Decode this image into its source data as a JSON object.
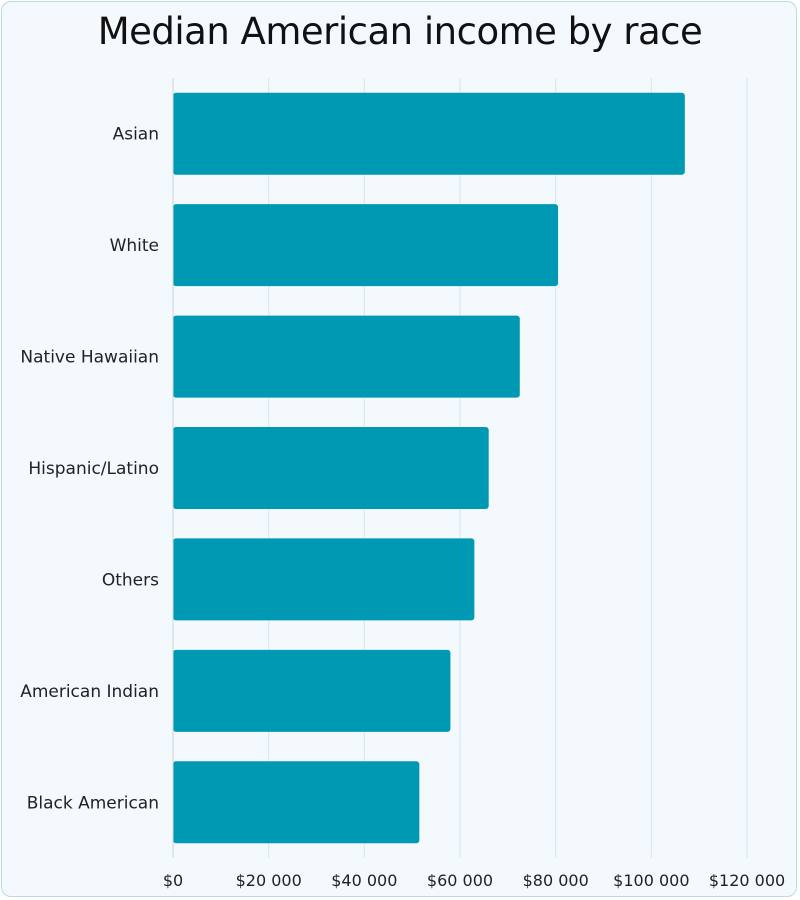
{
  "chart_data": {
    "type": "bar",
    "orientation": "horizontal",
    "title": "Median American income by race",
    "xlabel": "",
    "ylabel": "",
    "categories": [
      "Asian",
      "White",
      "Native Hawaiian",
      "Hispanic/Latino",
      "Others",
      "American Indian",
      "Black American"
    ],
    "values": [
      107000,
      80500,
      72500,
      66000,
      63000,
      58000,
      51500
    ],
    "xlim": [
      0,
      120000
    ],
    "xticks": [
      0,
      20000,
      40000,
      60000,
      80000,
      100000,
      120000
    ],
    "xtick_labels": [
      "$0",
      "$20 000",
      "$40 000",
      "$60 000",
      "$80 000",
      "$100 000",
      "$120 000"
    ],
    "grid": "vertical",
    "bar_color": "#0099b3",
    "grid_color": "#d9e6ec",
    "background": "#f4f9fd"
  }
}
